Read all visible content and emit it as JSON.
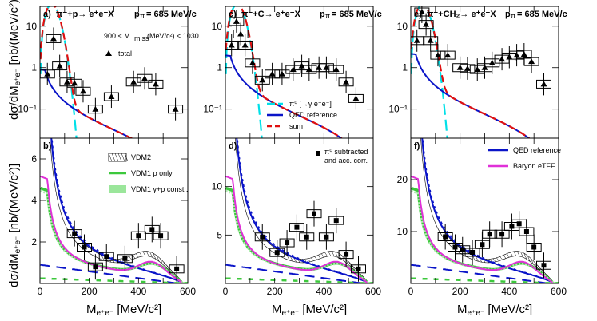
{
  "chart_data": {
    "type": "line",
    "y_title_top": "dσ/dM",
    "y_title_bottom": "dσ/dM",
    "y_unit": "[nb/(MeV/c²)]",
    "x_title": "M",
    "x_unit": "[MeV/c²]",
    "panels": [
      {
        "id": "a",
        "label": "a)",
        "reaction": "π⁻+p→ e⁺e⁻X",
        "momentum": "p",
        "momentum_value": "= 685 MeV/c",
        "note": "900 < M",
        "note_tail": "(MeV/c²) < 1030",
        "legend_total": "total",
        "log": true,
        "ylim": [
          0.02,
          30
        ],
        "yticks": [
          "10",
          "1",
          "10⁻¹"
        ],
        "ytick_values": [
          10,
          1,
          0.1
        ],
        "xlim": [
          0,
          600
        ],
        "data_x": [
          30,
          55,
          80,
          110,
          140,
          175,
          225,
          290,
          380,
          425,
          470,
          550
        ],
        "data_y": [
          0.7,
          5,
          1.1,
          0.45,
          0.42,
          0.27,
          0.1,
          0.2,
          0.45,
          0.55,
          0.4,
          0.1
        ]
      },
      {
        "id": "c",
        "label": "c)",
        "reaction": "π⁻+C→ e⁺e⁻X",
        "momentum": "p",
        "momentum_value": "= 685 MeV/c",
        "log": true,
        "ylim": [
          0.02,
          30
        ],
        "yticks": [
          "10",
          "1",
          "10⁻¹"
        ],
        "ytick_values": [
          10,
          1,
          0.1
        ],
        "xlim": [
          0,
          600
        ],
        "legend": [
          "π⁰ [→γ e⁺e⁻]",
          "QED reference",
          "sum"
        ],
        "data_x": [
          25,
          45,
          62,
          80,
          110,
          150,
          190,
          230,
          275,
          310,
          340,
          380,
          410,
          450,
          490,
          530
        ],
        "data_y": [
          3.5,
          13,
          6.5,
          3.5,
          1.3,
          0.5,
          0.7,
          0.7,
          0.9,
          1.1,
          0.9,
          1,
          1,
          0.9,
          0.45,
          0.18
        ]
      },
      {
        "id": "e",
        "label": "e)",
        "reaction": "π⁻+CH₂→ e⁺e⁻X",
        "momentum": "p",
        "momentum_value": "= 685 MeV/c",
        "log": true,
        "ylim": [
          0.02,
          30
        ],
        "yticks": [
          "10",
          "1",
          "10⁻¹"
        ],
        "ytick_values": [
          10,
          1,
          0.1
        ],
        "xlim": [
          0,
          600
        ],
        "data_x": [
          25,
          45,
          62,
          80,
          110,
          150,
          200,
          230,
          270,
          300,
          330,
          370,
          400,
          430,
          460,
          490,
          540
        ],
        "data_y": [
          4.5,
          22,
          11,
          4.5,
          2,
          2,
          1,
          0.95,
          0.9,
          1,
          1.3,
          1.6,
          1.8,
          2,
          2.1,
          1.4,
          0.4
        ]
      },
      {
        "id": "b",
        "label": "b)",
        "log": false,
        "ylim": [
          0,
          7
        ],
        "yticks": [
          "2",
          "4",
          "6"
        ],
        "ytick_values": [
          2,
          4,
          6
        ],
        "xlim": [
          0,
          600
        ],
        "xticks": [
          "0",
          "200",
          "400",
          "600"
        ],
        "xtick_values": [
          0,
          200,
          400,
          600
        ],
        "legend": [
          "VDM2",
          "VDM1 ρ only",
          "VDM1 γ+ρ constr."
        ],
        "data_x": [
          140,
          180,
          225,
          270,
          345,
          400,
          455,
          490,
          555
        ],
        "data_y": [
          2.4,
          1.75,
          0.8,
          1.3,
          1.2,
          2.3,
          2.6,
          2.3,
          0.7
        ]
      },
      {
        "id": "d",
        "label": "d)",
        "log": false,
        "ylim": [
          0,
          15
        ],
        "yticks": [
          "5",
          "10"
        ],
        "ytick_values": [
          5,
          10
        ],
        "xlim": [
          0,
          600
        ],
        "xticks": [
          "0",
          "200",
          "400",
          "600"
        ],
        "xtick_values": [
          0,
          200,
          400,
          600
        ],
        "note": "π⁰ subtracted",
        "note2": "and acc. corr.",
        "data_x": [
          150,
          210,
          250,
          290,
          330,
          360,
          410,
          450,
          490,
          540
        ],
        "data_y": [
          4.8,
          3.2,
          4.2,
          5.8,
          4.8,
          7.2,
          4.8,
          6.5,
          3,
          1.5
        ]
      },
      {
        "id": "f",
        "label": "f)",
        "log": false,
        "ylim": [
          0,
          28
        ],
        "yticks": [
          "10",
          "20"
        ],
        "ytick_values": [
          10,
          20
        ],
        "xlim": [
          0,
          600
        ],
        "xticks": [
          "0",
          "200",
          "400",
          "600"
        ],
        "xtick_values": [
          0,
          200,
          400,
          600
        ],
        "legend": [
          "QED reference",
          "Baryon eTFF"
        ],
        "data_x": [
          140,
          180,
          210,
          250,
          290,
          320,
          370,
          410,
          440,
          470,
          500,
          540
        ],
        "data_y": [
          9,
          7,
          6.5,
          6,
          7.5,
          9.5,
          9.5,
          11,
          11.5,
          10,
          7,
          3.5
        ]
      }
    ]
  },
  "colors": {
    "pi0": "#00e0e8",
    "qed": "#0a14c8",
    "sum": "#e01010",
    "vdm1": "#3cc83c",
    "baryon": "#e030d8"
  }
}
